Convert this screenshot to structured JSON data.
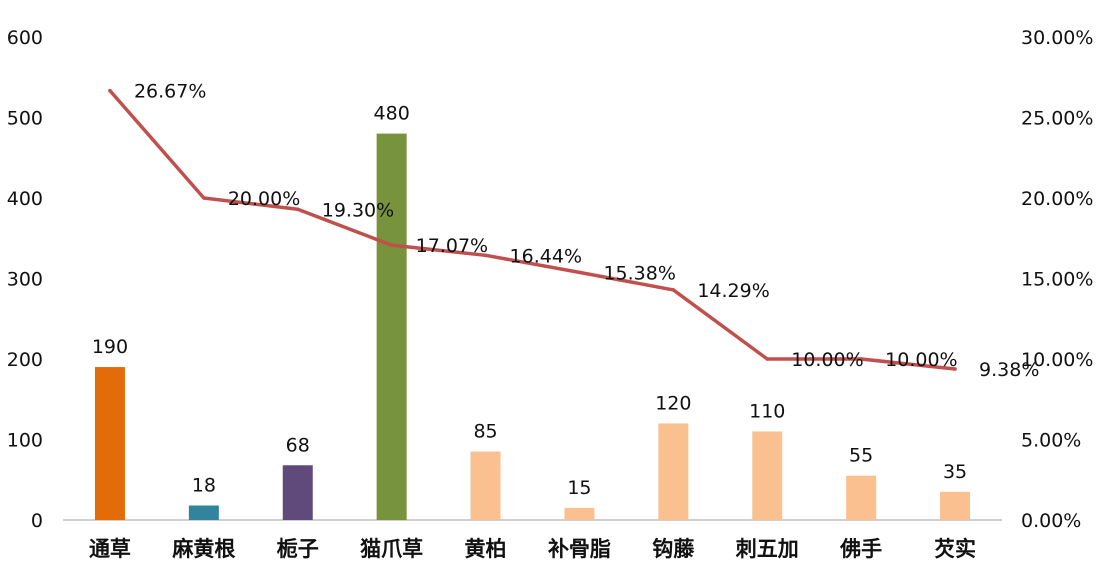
{
  "chart_data": {
    "type": "bar",
    "categories": [
      "通草",
      "麻黄根",
      "栀子",
      "猫爪草",
      "黄柏",
      "补骨脂",
      "钩藤",
      "刺五加",
      "佛手",
      "芡实"
    ],
    "series": [
      {
        "values": [
          190,
          18,
          68,
          480,
          85,
          15,
          120,
          110,
          55,
          35
        ],
        "labels": [
          "190",
          "18",
          "68",
          "480",
          "85",
          "15",
          "120",
          "110",
          "55",
          "35"
        ],
        "colors": [
          "#e36c09",
          "#31849b",
          "#604a7b",
          "#77933c",
          "#fac090",
          "#fac090",
          "#fac090",
          "#fac090",
          "#fac090",
          "#fac090"
        ],
        "axis": "left"
      },
      {
        "type": "line",
        "values": [
          26.67,
          20.0,
          19.3,
          17.07,
          16.44,
          15.38,
          14.29,
          10.0,
          10.0,
          9.38
        ],
        "labels": [
          "26.67%",
          "20.00%",
          "19.30%",
          "17.07%",
          "16.44%",
          "15.38%",
          "14.29%",
          "10.00%",
          "10.00%",
          "9.38%"
        ],
        "color": "#c0504d",
        "axis": "right"
      }
    ],
    "y_left": {
      "ylim": [
        0,
        600
      ],
      "ticks": [
        0,
        100,
        200,
        300,
        400,
        500,
        600
      ],
      "tick_labels": [
        "0",
        "100",
        "200",
        "300",
        "400",
        "500",
        "600"
      ]
    },
    "y_right": {
      "ylim": [
        0,
        30
      ],
      "ticks": [
        0,
        5,
        10,
        15,
        20,
        25,
        30
      ],
      "tick_labels": [
        "0.00%",
        "5.00%",
        "10.00%",
        "15.00%",
        "20.00%",
        "25.00%",
        "30.00%"
      ]
    },
    "title": "",
    "grid": false,
    "legend": "none"
  }
}
